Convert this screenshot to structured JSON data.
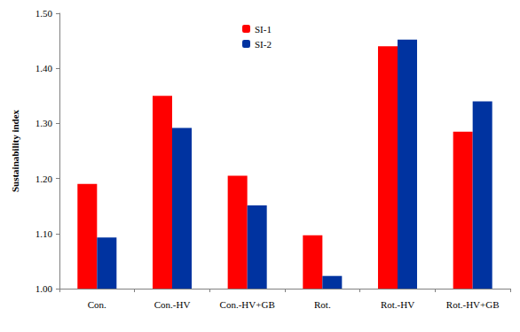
{
  "chart_data": {
    "type": "bar",
    "y_label": "Sustainability index",
    "categories": [
      "Con.",
      "Con.-HV",
      "Con.-HV+GB",
      "Rot.",
      "Rot.-HV",
      "Rot.-HV+GB"
    ],
    "series": [
      {
        "name": "SI-1",
        "color": "#ff0000",
        "values": [
          1.19,
          1.35,
          1.205,
          1.097,
          1.44,
          1.285
        ]
      },
      {
        "name": "SI-2",
        "color": "#0033a0",
        "values": [
          1.093,
          1.292,
          1.151,
          1.023,
          1.452,
          1.34
        ]
      }
    ],
    "ylim": [
      1.0,
      1.5
    ],
    "yticks": [
      {
        "value": 1.0,
        "label": "1.00"
      },
      {
        "value": 1.1,
        "label": "1.10"
      },
      {
        "value": 1.2,
        "label": "1.20"
      },
      {
        "value": 1.3,
        "label": "1.30"
      },
      {
        "value": 1.4,
        "label": "1.40"
      },
      {
        "value": 1.5,
        "label": "1.50"
      }
    ],
    "grid": false,
    "legend": "top"
  }
}
